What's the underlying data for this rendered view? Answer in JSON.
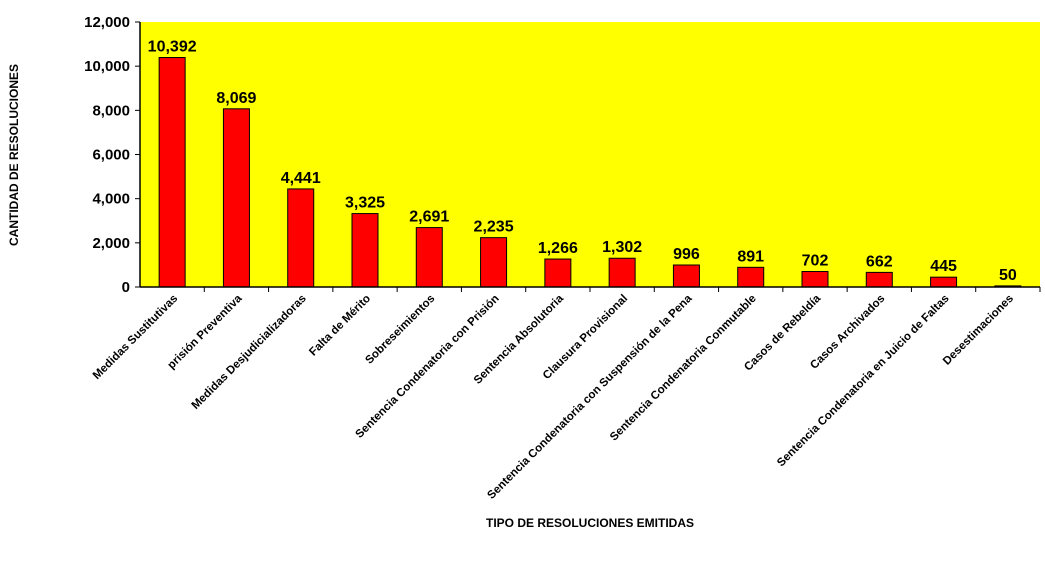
{
  "chart_data": {
    "type": "bar",
    "categories": [
      "Medidas Sustitutivas",
      "prisión Preventiva",
      "Medidas Desjudicializadoras",
      "Falta de Mérito",
      "Sobreseimientos",
      "Sentencia Condenatoria con Prisión",
      "Sentencia Absolutoria",
      "Clausura Provisional",
      "Sentencia Condenatoria con Suspensión de la Pena",
      "Sentencia Condenatoria Conmutable",
      "Casos de Rebeldía",
      "Casos Archivados",
      "Sentencia Condenatoria en Juicio de Faltas",
      "Desestimaciones"
    ],
    "values": [
      10392,
      8069,
      4441,
      3325,
      2691,
      2235,
      1266,
      1302,
      996,
      891,
      702,
      662,
      445,
      50
    ],
    "data_labels": [
      "10,392",
      "8,069",
      "4,441",
      "3,325",
      "2,691",
      "2,235",
      "1,266",
      "1,302",
      "996",
      "891",
      "702",
      "662",
      "445",
      "50"
    ],
    "yticks": [
      "0",
      "2,000",
      "4,000",
      "6,000",
      "8,000",
      "10,000",
      "12,000"
    ],
    "ylim": [
      0,
      12000
    ],
    "xlabel": "TIPO DE RESOLUCIONES EMITIDAS",
    "ylabel": "CANTIDAD DE RESOLUCIONES",
    "grid": false,
    "colors": {
      "plot_background": "#FFFF00",
      "bar_fill": "#FF0000",
      "bar_stroke": "#000000"
    }
  }
}
